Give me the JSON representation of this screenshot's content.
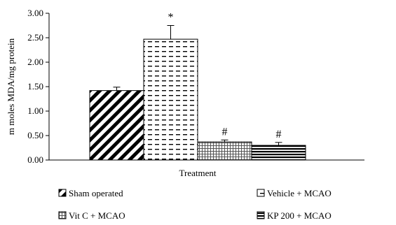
{
  "chart_data": {
    "type": "bar",
    "ylabel": "m moles MDA/mg protein",
    "xlabel": "Treatment",
    "ylim": [
      0,
      3
    ],
    "yticks": [
      "0.00",
      "0.50",
      "1.00",
      "1.50",
      "2.00",
      "2.50",
      "3.00"
    ],
    "grid": false,
    "legend_position": "bottom",
    "series": [
      {
        "name": "Sham operated",
        "value": 1.42,
        "error": 0.07,
        "marker": "",
        "pattern": "diagonal"
      },
      {
        "name": "Vehicle + MCAO",
        "value": 2.47,
        "error": 0.28,
        "marker": "*",
        "pattern": "dashed"
      },
      {
        "name": "Vit C + MCAO",
        "value": 0.37,
        "error": 0.04,
        "marker": "#",
        "pattern": "dotted-grid"
      },
      {
        "name": "KP 200 + MCAO",
        "value": 0.3,
        "error": 0.06,
        "marker": "#",
        "pattern": "horizontal"
      }
    ]
  }
}
